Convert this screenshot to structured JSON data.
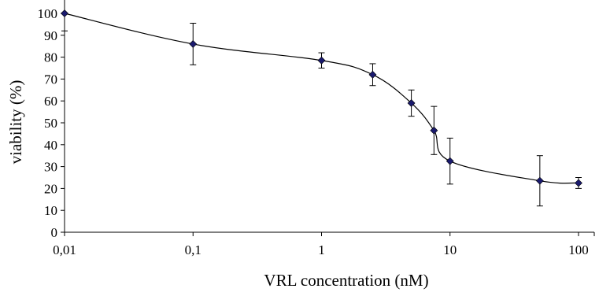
{
  "chart_data": {
    "type": "scatter",
    "title": "",
    "xlabel": "VRL concentration (nM)",
    "ylabel": "viability (%)",
    "x_scale": "log",
    "xlim": [
      0.01,
      100
    ],
    "ylim": [
      0,
      100
    ],
    "x_ticks": [
      "0,01",
      "0,1",
      "1",
      "10",
      "100"
    ],
    "y_ticks": [
      "0",
      "10",
      "20",
      "30",
      "40",
      "50",
      "60",
      "70",
      "80",
      "90",
      "100"
    ],
    "grid": false,
    "legend": "none",
    "marker_color": "#1a1a6e",
    "line_color": "#000000",
    "series": [
      {
        "x": [
          0.01,
          0.1,
          1,
          2.5,
          5,
          7.5,
          10,
          50,
          100
        ],
        "y": [
          100,
          86,
          78.5,
          72,
          59,
          46.5,
          32.5,
          23.5,
          22.5
        ],
        "error": [
          8,
          9.5,
          3.5,
          5,
          6,
          11,
          10.5,
          11.5,
          2.5
        ]
      }
    ]
  }
}
